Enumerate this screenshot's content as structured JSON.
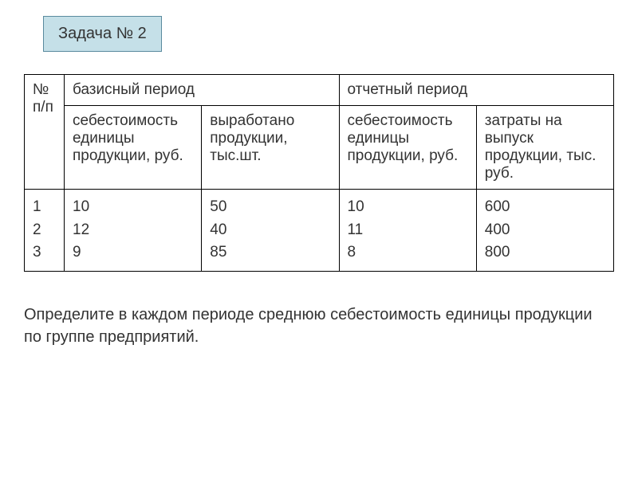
{
  "task_label": "Задача № 2",
  "table": {
    "header_row1": {
      "col0": "№ п/п",
      "col1": "базисный период",
      "col2": "отчетный период"
    },
    "header_row2": {
      "col0": "себестоимость единицы продукции, руб.",
      "col1": "выработано продукции, тыс.шт.",
      "col2": "себестоимость единицы продукции, руб.",
      "col3": "затраты на выпуск продукции, тыс. руб."
    },
    "data": {
      "nums": "1\n2\n3",
      "base_cost": "10\n12\n9",
      "base_output": "50\n40\n85",
      "report_cost": "10\n11\n8",
      "report_expense": "600\n400\n800"
    }
  },
  "instruction": "Определите в каждом периоде среднюю себестоимость единицы продукции по группе предприятий.",
  "colors": {
    "badge_bg": "#c5e0e8",
    "badge_border": "#5a8a9e",
    "text": "#333333",
    "border": "#000000",
    "background": "#ffffff"
  }
}
